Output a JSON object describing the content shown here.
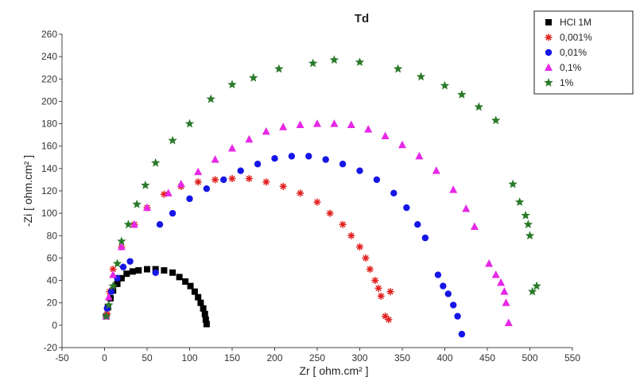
{
  "chart_data": {
    "type": "scatter",
    "title": "Td",
    "xlabel": "Zr [ ohm.cm² ]",
    "ylabel": "-Zi [ ohm.cm² ]",
    "xlim": [
      -50,
      550
    ],
    "ylim": [
      -20,
      260
    ],
    "xticks": [
      -50,
      0,
      50,
      100,
      150,
      200,
      250,
      300,
      350,
      400,
      450,
      500,
      550
    ],
    "yticks": [
      -20,
      0,
      20,
      40,
      60,
      80,
      100,
      120,
      140,
      160,
      180,
      200,
      220,
      240,
      260
    ],
    "grid": false,
    "legend_position": "top-right",
    "series": [
      {
        "name": "HCl 1M",
        "color": "#000000",
        "marker": "square",
        "points": [
          [
            2,
            8
          ],
          [
            4,
            16
          ],
          [
            7,
            24
          ],
          [
            10,
            31
          ],
          [
            15,
            37
          ],
          [
            20,
            42
          ],
          [
            26,
            46
          ],
          [
            33,
            48
          ],
          [
            40,
            49
          ],
          [
            50,
            50
          ],
          [
            60,
            50
          ],
          [
            70,
            49
          ],
          [
            80,
            47
          ],
          [
            88,
            43
          ],
          [
            95,
            39
          ],
          [
            101,
            35
          ],
          [
            106,
            30
          ],
          [
            110,
            25
          ],
          [
            113,
            20
          ],
          [
            116,
            15
          ],
          [
            118,
            10
          ],
          [
            119,
            5
          ],
          [
            120,
            1
          ]
        ]
      },
      {
        "name": "0,001%",
        "color": "#e0201e",
        "marker": "asterisk",
        "points": [
          [
            3,
            10
          ],
          [
            6,
            30
          ],
          [
            10,
            50
          ],
          [
            20,
            70
          ],
          [
            35,
            90
          ],
          [
            50,
            105
          ],
          [
            70,
            117
          ],
          [
            90,
            124
          ],
          [
            110,
            128
          ],
          [
            130,
            130
          ],
          [
            150,
            131
          ],
          [
            170,
            131
          ],
          [
            190,
            128
          ],
          [
            210,
            124
          ],
          [
            230,
            118
          ],
          [
            250,
            110
          ],
          [
            265,
            100
          ],
          [
            280,
            90
          ],
          [
            290,
            80
          ],
          [
            300,
            70
          ],
          [
            307,
            60
          ],
          [
            312,
            50
          ],
          [
            318,
            40
          ],
          [
            322,
            33
          ],
          [
            325,
            26
          ],
          [
            330,
            8
          ],
          [
            334,
            5
          ],
          [
            336,
            30
          ]
        ]
      },
      {
        "name": "0,01%",
        "color": "#1515e6",
        "marker": "circle",
        "points": [
          [
            3,
            15
          ],
          [
            8,
            30
          ],
          [
            15,
            42
          ],
          [
            22,
            52
          ],
          [
            30,
            57
          ],
          [
            60,
            47
          ],
          [
            65,
            90
          ],
          [
            80,
            100
          ],
          [
            100,
            113
          ],
          [
            120,
            122
          ],
          [
            140,
            130
          ],
          [
            160,
            138
          ],
          [
            180,
            144
          ],
          [
            200,
            149
          ],
          [
            220,
            151
          ],
          [
            240,
            151
          ],
          [
            260,
            148
          ],
          [
            280,
            144
          ],
          [
            300,
            138
          ],
          [
            320,
            130
          ],
          [
            340,
            118
          ],
          [
            355,
            105
          ],
          [
            368,
            90
          ],
          [
            377,
            78
          ],
          [
            392,
            45
          ],
          [
            398,
            35
          ],
          [
            404,
            28
          ],
          [
            410,
            18
          ],
          [
            415,
            8
          ],
          [
            420,
            -8
          ]
        ]
      },
      {
        "name": "0,1%",
        "color": "#e628e6",
        "marker": "triangle",
        "points": [
          [
            2,
            8
          ],
          [
            5,
            25
          ],
          [
            10,
            45
          ],
          [
            20,
            70
          ],
          [
            35,
            90
          ],
          [
            50,
            105
          ],
          [
            75,
            118
          ],
          [
            90,
            126
          ],
          [
            110,
            137
          ],
          [
            130,
            148
          ],
          [
            150,
            158
          ],
          [
            170,
            166
          ],
          [
            190,
            173
          ],
          [
            210,
            177
          ],
          [
            230,
            179
          ],
          [
            250,
            180
          ],
          [
            270,
            180
          ],
          [
            290,
            179
          ],
          [
            310,
            175
          ],
          [
            330,
            169
          ],
          [
            350,
            161
          ],
          [
            370,
            151
          ],
          [
            390,
            138
          ],
          [
            410,
            121
          ],
          [
            425,
            104
          ],
          [
            435,
            88
          ],
          [
            452,
            55
          ],
          [
            460,
            45
          ],
          [
            466,
            38
          ],
          [
            470,
            30
          ],
          [
            472,
            20
          ],
          [
            475,
            2
          ]
        ]
      },
      {
        "name": "1%",
        "color": "#2a7a2a",
        "marker": "star",
        "points": [
          [
            2,
            8
          ],
          [
            5,
            18
          ],
          [
            10,
            35
          ],
          [
            15,
            55
          ],
          [
            20,
            75
          ],
          [
            28,
            90
          ],
          [
            38,
            108
          ],
          [
            48,
            125
          ],
          [
            60,
            145
          ],
          [
            80,
            165
          ],
          [
            100,
            180
          ],
          [
            125,
            202
          ],
          [
            150,
            215
          ],
          [
            175,
            221
          ],
          [
            205,
            229
          ],
          [
            245,
            234
          ],
          [
            270,
            237
          ],
          [
            300,
            235
          ],
          [
            345,
            229
          ],
          [
            372,
            222
          ],
          [
            400,
            214
          ],
          [
            420,
            206
          ],
          [
            440,
            195
          ],
          [
            460,
            183
          ],
          [
            480,
            126
          ],
          [
            488,
            110
          ],
          [
            495,
            98
          ],
          [
            498,
            90
          ],
          [
            500,
            80
          ],
          [
            503,
            30
          ],
          [
            508,
            35
          ]
        ]
      }
    ]
  }
}
